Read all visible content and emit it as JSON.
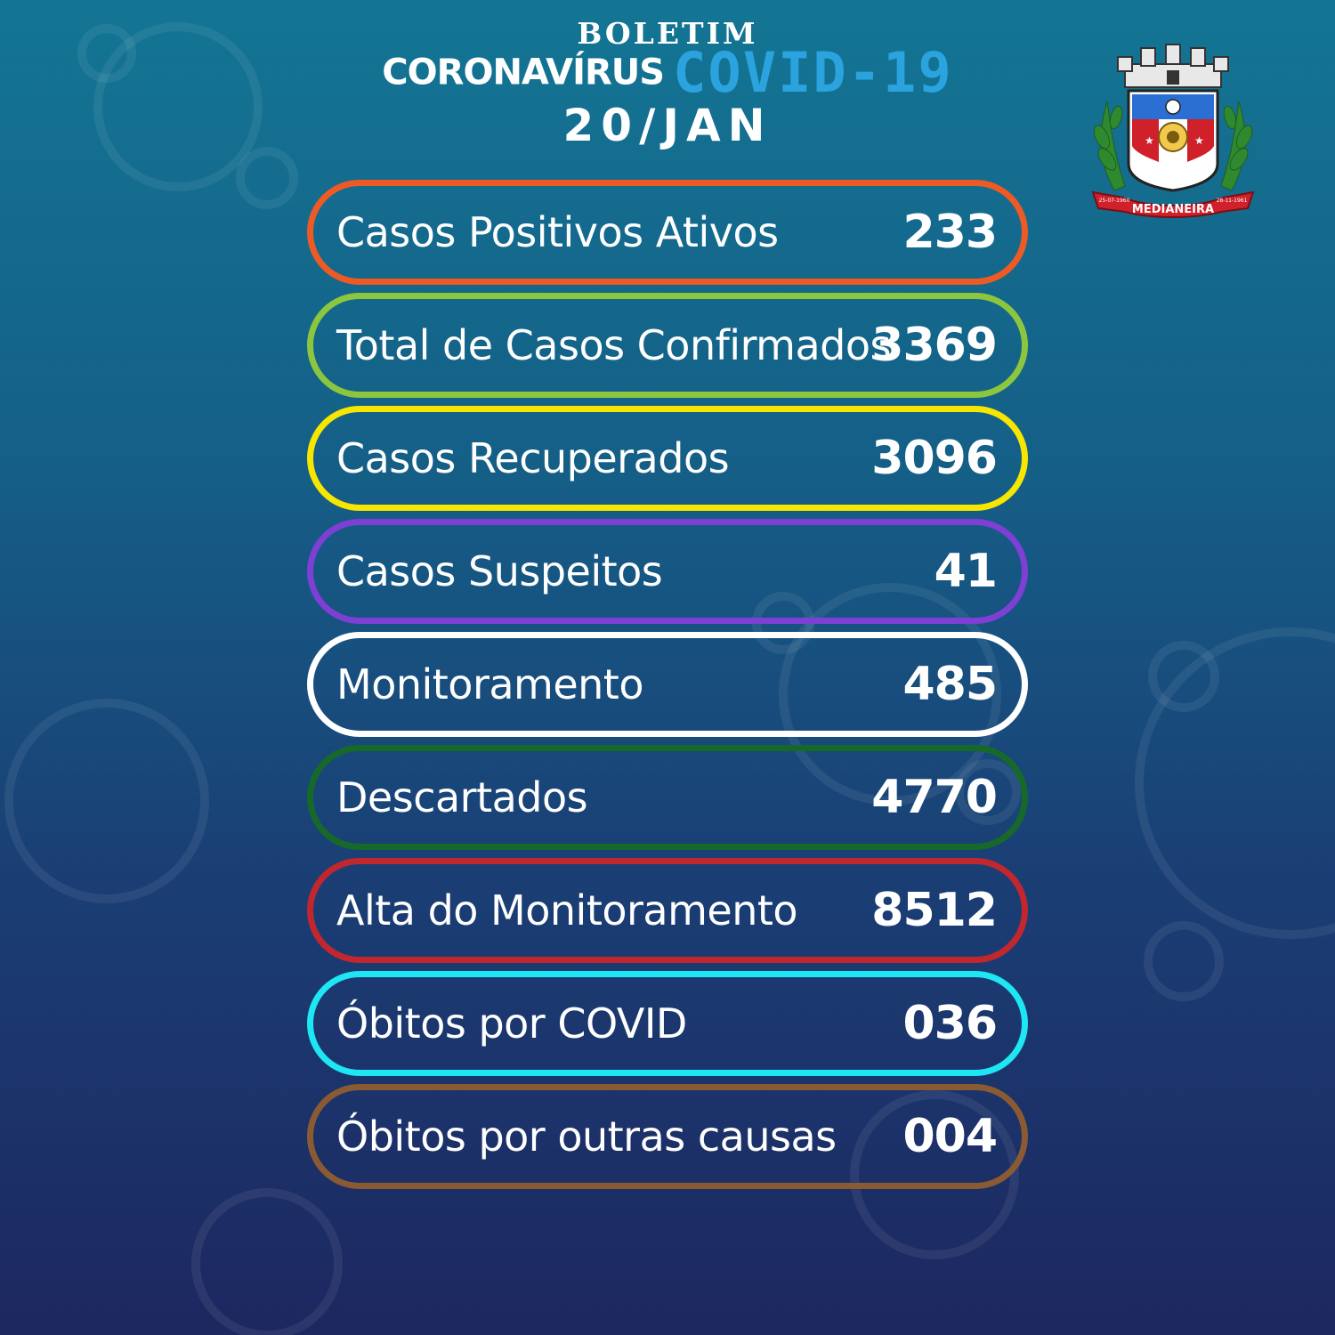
{
  "header": {
    "bulletin_label": "BOLETIM",
    "coronavirus_label": "CORONAVÍRUS",
    "covid_label": "COVID-19",
    "date": "20/JAN"
  },
  "logo": {
    "city_name": "MEDIANEIRA",
    "date_left": "25-07-1960",
    "date_right": "28-11-1961"
  },
  "stats": [
    {
      "label": "Casos Positivos Ativos",
      "value": "233",
      "color": "#ee5a24"
    },
    {
      "label": "Total de Casos Confirmados",
      "value": "3369",
      "color": "#8cc63f"
    },
    {
      "label": "Casos Recuperados",
      "value": "3096",
      "color": "#f7e600"
    },
    {
      "label": "Casos Suspeitos",
      "value": "41",
      "color": "#7e3fd4"
    },
    {
      "label": "Monitoramento",
      "value": "485",
      "color": "#ffffff"
    },
    {
      "label": "Descartados",
      "value": "4770",
      "color": "#17692a"
    },
    {
      "label": "Alta do Monitoramento",
      "value": "8512",
      "color": "#c1272d"
    },
    {
      "label": "Óbitos por COVID",
      "value": "036",
      "color": "#1ee6f2"
    },
    {
      "label": "Óbitos por outras causas",
      "value": "004",
      "color": "#8a5a33"
    }
  ]
}
